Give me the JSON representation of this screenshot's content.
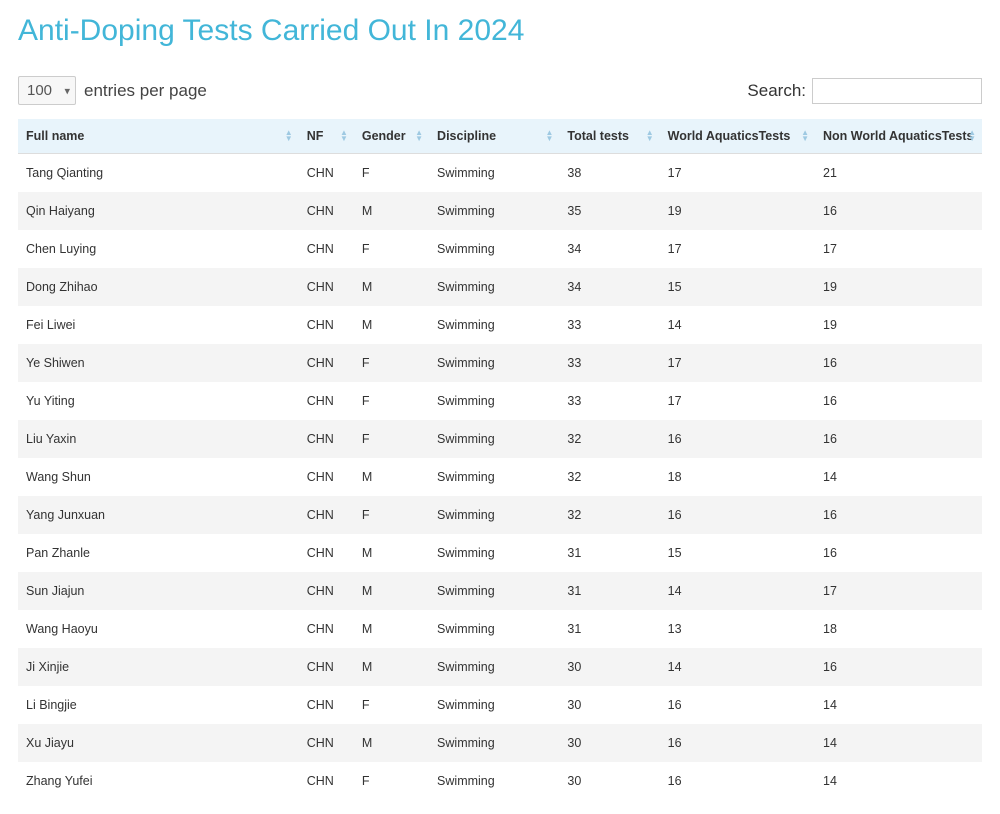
{
  "page": {
    "title": "Anti-Doping Tests Carried Out In 2024"
  },
  "controls": {
    "entries_value": "100",
    "entries_label": "entries per page",
    "search_label": "Search:",
    "search_value": ""
  },
  "table": {
    "columns": [
      {
        "key": "full_name",
        "label": "Full name",
        "class": "col-name"
      },
      {
        "key": "nf",
        "label": "NF",
        "class": "col-nf"
      },
      {
        "key": "gender",
        "label": "Gender",
        "class": "col-gender"
      },
      {
        "key": "discipline",
        "label": "Discipline",
        "class": "col-disc"
      },
      {
        "key": "total_tests",
        "label": "Total tests",
        "class": "col-total"
      },
      {
        "key": "world_aquatics_tests",
        "label": "World AquaticsTests",
        "class": "col-world"
      },
      {
        "key": "non_world_aquatics_tests",
        "label": "Non World AquaticsTests",
        "class": "col-nonworld"
      }
    ],
    "rows": [
      {
        "full_name": "Tang Qianting",
        "nf": "CHN",
        "gender": "F",
        "discipline": "Swimming",
        "total_tests": 38,
        "world_aquatics_tests": 17,
        "non_world_aquatics_tests": 21
      },
      {
        "full_name": "Qin Haiyang",
        "nf": "CHN",
        "gender": "M",
        "discipline": "Swimming",
        "total_tests": 35,
        "world_aquatics_tests": 19,
        "non_world_aquatics_tests": 16
      },
      {
        "full_name": "Chen Luying",
        "nf": "CHN",
        "gender": "F",
        "discipline": "Swimming",
        "total_tests": 34,
        "world_aquatics_tests": 17,
        "non_world_aquatics_tests": 17
      },
      {
        "full_name": "Dong Zhihao",
        "nf": "CHN",
        "gender": "M",
        "discipline": "Swimming",
        "total_tests": 34,
        "world_aquatics_tests": 15,
        "non_world_aquatics_tests": 19
      },
      {
        "full_name": "Fei Liwei",
        "nf": "CHN",
        "gender": "M",
        "discipline": "Swimming",
        "total_tests": 33,
        "world_aquatics_tests": 14,
        "non_world_aquatics_tests": 19
      },
      {
        "full_name": "Ye Shiwen",
        "nf": "CHN",
        "gender": "F",
        "discipline": "Swimming",
        "total_tests": 33,
        "world_aquatics_tests": 17,
        "non_world_aquatics_tests": 16
      },
      {
        "full_name": "Yu Yiting",
        "nf": "CHN",
        "gender": "F",
        "discipline": "Swimming",
        "total_tests": 33,
        "world_aquatics_tests": 17,
        "non_world_aquatics_tests": 16
      },
      {
        "full_name": "Liu Yaxin",
        "nf": "CHN",
        "gender": "F",
        "discipline": "Swimming",
        "total_tests": 32,
        "world_aquatics_tests": 16,
        "non_world_aquatics_tests": 16
      },
      {
        "full_name": "Wang Shun",
        "nf": "CHN",
        "gender": "M",
        "discipline": "Swimming",
        "total_tests": 32,
        "world_aquatics_tests": 18,
        "non_world_aquatics_tests": 14
      },
      {
        "full_name": "Yang Junxuan",
        "nf": "CHN",
        "gender": "F",
        "discipline": "Swimming",
        "total_tests": 32,
        "world_aquatics_tests": 16,
        "non_world_aquatics_tests": 16
      },
      {
        "full_name": "Pan Zhanle",
        "nf": "CHN",
        "gender": "M",
        "discipline": "Swimming",
        "total_tests": 31,
        "world_aquatics_tests": 15,
        "non_world_aquatics_tests": 16
      },
      {
        "full_name": "Sun Jiajun",
        "nf": "CHN",
        "gender": "M",
        "discipline": "Swimming",
        "total_tests": 31,
        "world_aquatics_tests": 14,
        "non_world_aquatics_tests": 17
      },
      {
        "full_name": "Wang Haoyu",
        "nf": "CHN",
        "gender": "M",
        "discipline": "Swimming",
        "total_tests": 31,
        "world_aquatics_tests": 13,
        "non_world_aquatics_tests": 18
      },
      {
        "full_name": "Ji Xinjie",
        "nf": "CHN",
        "gender": "M",
        "discipline": "Swimming",
        "total_tests": 30,
        "world_aquatics_tests": 14,
        "non_world_aquatics_tests": 16
      },
      {
        "full_name": "Li Bingjie",
        "nf": "CHN",
        "gender": "F",
        "discipline": "Swimming",
        "total_tests": 30,
        "world_aquatics_tests": 16,
        "non_world_aquatics_tests": 14
      },
      {
        "full_name": "Xu Jiayu",
        "nf": "CHN",
        "gender": "M",
        "discipline": "Swimming",
        "total_tests": 30,
        "world_aquatics_tests": 16,
        "non_world_aquatics_tests": 14
      },
      {
        "full_name": "Zhang Yufei",
        "nf": "CHN",
        "gender": "F",
        "discipline": "Swimming",
        "total_tests": 30,
        "world_aquatics_tests": 16,
        "non_world_aquatics_tests": 14
      }
    ]
  },
  "colors": {
    "title": "#42b6d8",
    "header_bg": "#e8f4fb",
    "row_alt_bg": "#f4f4f4",
    "sort_arrow": "#9ec9e2"
  }
}
